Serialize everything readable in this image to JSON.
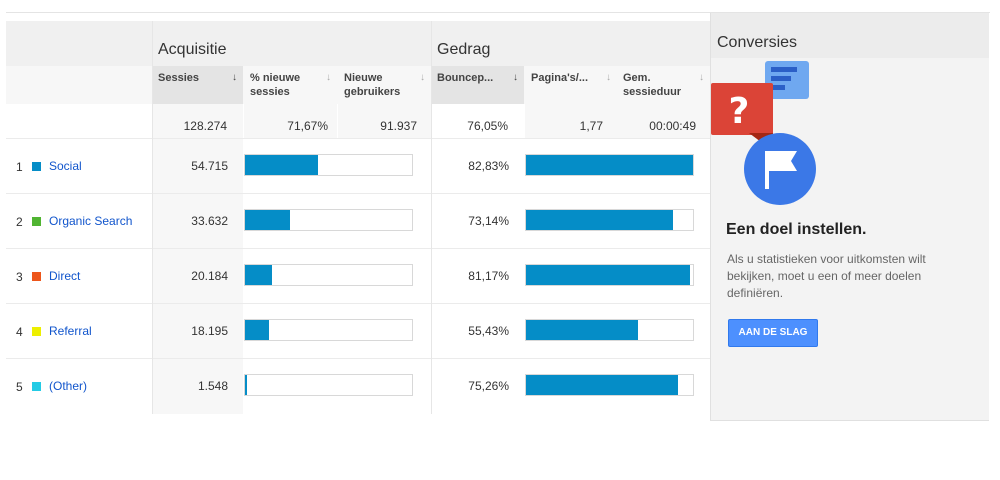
{
  "groups": {
    "acquisition": "Acquisitie",
    "behavior": "Gedrag",
    "conversions": "Conversies"
  },
  "columns": [
    {
      "label": "Sessies",
      "sort_icon": "sort-desc-icon",
      "active": true
    },
    {
      "label": "% nieuwe sessies",
      "sort_icon": "sort-icon"
    },
    {
      "label": "Nieuwe gebruikers",
      "sort_icon": "sort-icon"
    },
    {
      "label": "Bouncep...",
      "sort_icon": "sort-icon"
    },
    {
      "label": "Pagina's/...",
      "sort_icon": "sort-icon"
    },
    {
      "label": "Gem. sessieduur",
      "sort_icon": "sort-icon"
    }
  ],
  "sort_glyphs": {
    "active": "↓",
    "inactive": "↓"
  },
  "totals": {
    "sessions": "128.274",
    "new_sessions_pct": "71,67%",
    "new_users": "91.937",
    "bounce_rate": "76,05%",
    "pages_per_session": "1,77",
    "avg_duration": "00:00:49"
  },
  "rows": [
    {
      "rank": "1",
      "channel": "Social",
      "color": "#058dc7",
      "sessions": "54.715",
      "sessions_share": 0.4266,
      "bounce_rate": "82,83%",
      "bounce_value": 0.8283
    },
    {
      "rank": "2",
      "channel": "Organic Search",
      "color": "#50b432",
      "sessions": "33.632",
      "sessions_share": 0.2622,
      "bounce_rate": "73,14%",
      "bounce_value": 0.7314
    },
    {
      "rank": "3",
      "channel": "Direct",
      "color": "#ed561b",
      "sessions": "20.184",
      "sessions_share": 0.1573,
      "bounce_rate": "81,17%",
      "bounce_value": 0.8117
    },
    {
      "rank": "4",
      "channel": "Referral",
      "color": "#edef00",
      "sessions": "18.195",
      "sessions_share": 0.1418,
      "bounce_rate": "55,43%",
      "bounce_value": 0.5543
    },
    {
      "rank": "5",
      "channel": "(Other)",
      "color": "#24cbe5",
      "sessions": "1.548",
      "sessions_share": 0.0121,
      "bounce_rate": "75,26%",
      "bounce_value": 0.7526
    }
  ],
  "goal": {
    "illustration_icon": "goal-flag-question-icon",
    "title": "Een doel instellen.",
    "description": "Als u statistieken voor uitkomsten wilt bekijken, moet u een of meer doelen definiëren.",
    "button_label": "AAN DE SLAG",
    "colors": {
      "question": "#db4437",
      "doc": "#6fa8f0",
      "flag_circle": "#3b78e7"
    }
  }
}
